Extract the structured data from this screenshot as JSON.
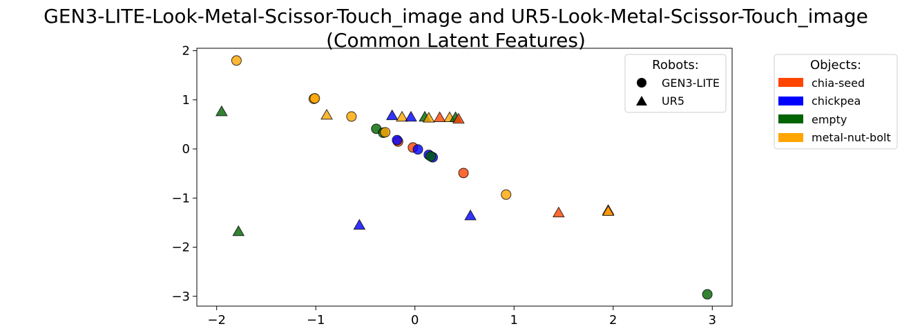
{
  "chart_data": {
    "type": "scatter",
    "title": "GEN3-LITE-Look-Metal-Scissor-Touch_image and UR5-Look-Metal-Scissor-Touch_image",
    "subtitle": "(Common Latent Features)",
    "xlabel": "",
    "ylabel": "",
    "xlim": [
      -2.2,
      3.2
    ],
    "ylim": [
      -3.2,
      2.05
    ],
    "xticks": [
      -2,
      -1,
      0,
      1,
      2,
      3
    ],
    "yticks": [
      2,
      1,
      0,
      -1,
      -2,
      -3
    ],
    "xtick_labels": [
      "−2",
      "−1",
      "0",
      "1",
      "2",
      "3"
    ],
    "ytick_labels": [
      "2",
      "1",
      "0",
      "−1",
      "−2",
      "−3"
    ],
    "grid": false,
    "colors": {
      "chia-seed": "#ff4500",
      "chickpea": "#0000ff",
      "empty": "#006400",
      "metal-nut-bolt": "#ffa500"
    },
    "legend_robots": {
      "title": "Robots:",
      "placement": "top-right",
      "entries": [
        {
          "label": "GEN3-LITE",
          "marker": "circle"
        },
        {
          "label": "UR5",
          "marker": "triangle"
        }
      ]
    },
    "legend_objects": {
      "title": "Objects:",
      "placement": "outside-right",
      "entries": [
        {
          "label": "chia-seed",
          "color": "#ff4500"
        },
        {
          "label": "chickpea",
          "color": "#0000ff"
        },
        {
          "label": "empty",
          "color": "#006400"
        },
        {
          "label": "metal-nut-bolt",
          "color": "#ffa500"
        }
      ]
    },
    "points": [
      {
        "x": -1.8,
        "y": 1.8,
        "robot": "GEN3-LITE",
        "object": "metal-nut-bolt"
      },
      {
        "x": -1.02,
        "y": 1.02,
        "robot": "GEN3-LITE",
        "object": "metal-nut-bolt"
      },
      {
        "x": -1.01,
        "y": 1.03,
        "robot": "GEN3-LITE",
        "object": "metal-nut-bolt"
      },
      {
        "x": -0.64,
        "y": 0.66,
        "robot": "GEN3-LITE",
        "object": "metal-nut-bolt"
      },
      {
        "x": -0.39,
        "y": 0.41,
        "robot": "GEN3-LITE",
        "object": "empty"
      },
      {
        "x": -0.32,
        "y": 0.33,
        "robot": "GEN3-LITE",
        "object": "empty"
      },
      {
        "x": -0.3,
        "y": 0.34,
        "robot": "GEN3-LITE",
        "object": "metal-nut-bolt"
      },
      {
        "x": -0.17,
        "y": 0.15,
        "robot": "GEN3-LITE",
        "object": "chia-seed"
      },
      {
        "x": -0.18,
        "y": 0.18,
        "robot": "GEN3-LITE",
        "object": "chickpea"
      },
      {
        "x": -0.02,
        "y": 0.03,
        "robot": "GEN3-LITE",
        "object": "chia-seed"
      },
      {
        "x": 0.03,
        "y": -0.01,
        "robot": "GEN3-LITE",
        "object": "chickpea"
      },
      {
        "x": 0.14,
        "y": -0.12,
        "robot": "GEN3-LITE",
        "object": "chickpea"
      },
      {
        "x": 0.18,
        "y": -0.17,
        "robot": "GEN3-LITE",
        "object": "chickpea"
      },
      {
        "x": 0.16,
        "y": -0.15,
        "robot": "GEN3-LITE",
        "object": "empty"
      },
      {
        "x": 0.49,
        "y": -0.49,
        "robot": "GEN3-LITE",
        "object": "chia-seed"
      },
      {
        "x": 0.92,
        "y": -0.93,
        "robot": "GEN3-LITE",
        "object": "metal-nut-bolt"
      },
      {
        "x": 2.95,
        "y": -2.96,
        "robot": "GEN3-LITE",
        "object": "empty"
      },
      {
        "x": -1.95,
        "y": 0.76,
        "robot": "UR5",
        "object": "empty"
      },
      {
        "x": -0.89,
        "y": 0.69,
        "robot": "UR5",
        "object": "metal-nut-bolt"
      },
      {
        "x": -0.23,
        "y": 0.68,
        "robot": "UR5",
        "object": "chickpea"
      },
      {
        "x": -0.13,
        "y": 0.65,
        "robot": "UR5",
        "object": "metal-nut-bolt"
      },
      {
        "x": -0.04,
        "y": 0.65,
        "robot": "UR5",
        "object": "chickpea"
      },
      {
        "x": 0.1,
        "y": 0.65,
        "robot": "UR5",
        "object": "empty"
      },
      {
        "x": 0.14,
        "y": 0.63,
        "robot": "UR5",
        "object": "metal-nut-bolt"
      },
      {
        "x": 0.25,
        "y": 0.64,
        "robot": "UR5",
        "object": "chia-seed"
      },
      {
        "x": 0.35,
        "y": 0.64,
        "robot": "UR5",
        "object": "metal-nut-bolt"
      },
      {
        "x": 0.41,
        "y": 0.64,
        "robot": "UR5",
        "object": "empty"
      },
      {
        "x": 0.44,
        "y": 0.61,
        "robot": "UR5",
        "object": "chia-seed"
      },
      {
        "x": -1.78,
        "y": -1.68,
        "robot": "UR5",
        "object": "empty"
      },
      {
        "x": -0.56,
        "y": -1.55,
        "robot": "UR5",
        "object": "chickpea"
      },
      {
        "x": 0.56,
        "y": -1.36,
        "robot": "UR5",
        "object": "chickpea"
      },
      {
        "x": 1.45,
        "y": -1.3,
        "robot": "UR5",
        "object": "chia-seed"
      },
      {
        "x": 1.95,
        "y": -1.25,
        "robot": "UR5",
        "object": "chia-seed"
      },
      {
        "x": 1.95,
        "y": -1.27,
        "robot": "UR5",
        "object": "metal-nut-bolt"
      }
    ]
  }
}
